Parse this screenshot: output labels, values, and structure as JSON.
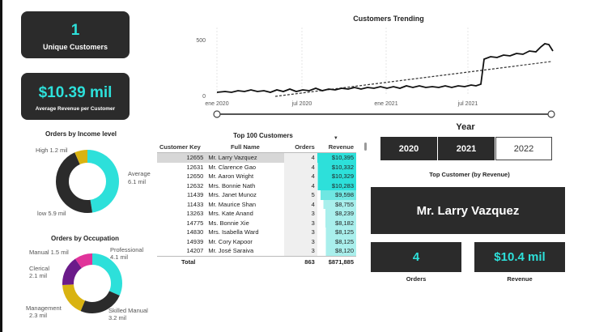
{
  "kpis": {
    "unique_customers": {
      "value": "1",
      "label": "Unique Customers"
    },
    "avg_revenue": {
      "value": "$10.39 mil",
      "label": "Average Revenue per Customer"
    }
  },
  "trend": {
    "title": "Customers Trending",
    "y_ticks": [
      "500",
      "0"
    ],
    "x_ticks": [
      "ene 2020",
      "jul 2020",
      "ene 2021",
      "jul 2021"
    ]
  },
  "income": {
    "title": "Orders by Income level",
    "labels": {
      "high": "High 1.2 mil",
      "average_name": "Average",
      "average_value": "6.1 mil",
      "low": "low 5.9 mil"
    }
  },
  "occupation": {
    "title": "Orders by Occupation",
    "labels": {
      "manual": "Manual 1.5 mil",
      "professional_name": "Professional",
      "professional_value": "4.1 mil",
      "clerical_name": "Clerical",
      "clerical_value": "2.1 mil",
      "management_name": "Management",
      "management_value": "2.3 mil",
      "skilled_name": "Skilled Manual",
      "skilled_value": "3.2 mil"
    }
  },
  "top100": {
    "title": "Top 100 Customers",
    "columns": [
      "Customer Key",
      "Full Name",
      "Orders",
      "Revenue"
    ],
    "rows": [
      {
        "key": "12655",
        "name": "Mr. Larry Vazquez",
        "orders": "4",
        "revenue": "$10,395"
      },
      {
        "key": "12631",
        "name": "Mr. Clarence Gao",
        "orders": "4",
        "revenue": "$10,332"
      },
      {
        "key": "12650",
        "name": "Mr. Aaron Wright",
        "orders": "4",
        "revenue": "$10,329"
      },
      {
        "key": "12632",
        "name": "Mrs. Bonnie Nath",
        "orders": "4",
        "revenue": "$10,283"
      },
      {
        "key": "11439",
        "name": "Mrs. Janet Munoz",
        "orders": "5",
        "revenue": "$9,598"
      },
      {
        "key": "11433",
        "name": "Mr. Maurice Shan",
        "orders": "4",
        "revenue": "$8,755"
      },
      {
        "key": "13263",
        "name": "Mrs. Kate Anand",
        "orders": "3",
        "revenue": "$8,239"
      },
      {
        "key": "14775",
        "name": "Ms. Bonnie Xie",
        "orders": "3",
        "revenue": "$8,182"
      },
      {
        "key": "14830",
        "name": "Mrs. Isabella Ward",
        "orders": "3",
        "revenue": "$8,125"
      },
      {
        "key": "14939",
        "name": "Mr. Cory Kapoor",
        "orders": "3",
        "revenue": "$8,125"
      },
      {
        "key": "14207",
        "name": "Mr. José Saraiva",
        "orders": "3",
        "revenue": "$8,120"
      }
    ],
    "total": {
      "label": "Total",
      "orders": "863",
      "revenue": "$871,885"
    }
  },
  "year": {
    "title": "Year",
    "options": [
      "2020",
      "2021",
      "2022"
    ]
  },
  "top_customer": {
    "title": "Top Customer (by Revenue)",
    "name": "Mr. Larry Vazquez",
    "orders_value": "4",
    "orders_label": "Orders",
    "revenue_value": "$10.4 mil",
    "revenue_label": "Revenue"
  },
  "colors": {
    "accent": "#2de0da",
    "card": "#2b2b2b",
    "yellow": "#d9b311",
    "magenta": "#e0339a",
    "purple": "#6b1b8a"
  }
}
